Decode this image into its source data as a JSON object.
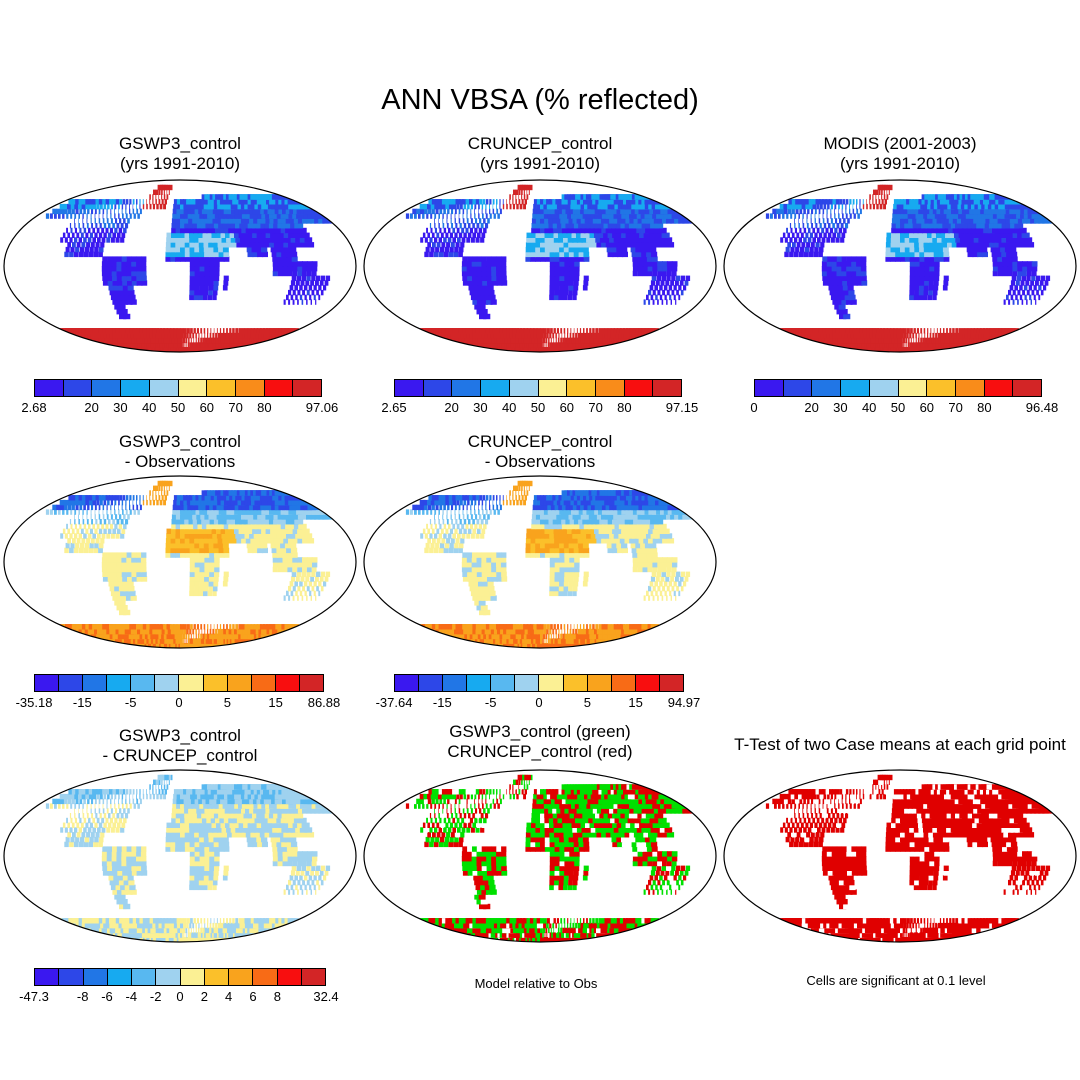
{
  "title": "ANN VBSA (% reflected)",
  "panels": [
    {
      "id": "p1",
      "title1": "GSWP3_control",
      "title2": "(yrs 1991-2010)",
      "scheme": "abs",
      "palette": "abs",
      "ticks": [
        "2.68",
        "20",
        "30",
        "40",
        "50",
        "60",
        "70",
        "80",
        "97.06"
      ]
    },
    {
      "id": "p2",
      "title1": "CRUNCEP_control",
      "title2": "(yrs 1991-2010)",
      "scheme": "abs",
      "palette": "abs",
      "ticks": [
        "2.65",
        "20",
        "30",
        "40",
        "50",
        "60",
        "70",
        "80",
        "97.15"
      ]
    },
    {
      "id": "p3",
      "title1": "MODIS (2001-2003)",
      "title2": "(yrs 1991-2010)",
      "scheme": "abs",
      "palette": "abs",
      "ticks": [
        "0",
        "20",
        "30",
        "40",
        "50",
        "60",
        "70",
        "80",
        "96.48"
      ]
    },
    {
      "id": "p4",
      "title1": "GSWP3_control",
      "title2": "- Observations",
      "scheme": "diff",
      "palette": "diff",
      "ticks": [
        "-35.18",
        "-15",
        "-5",
        "0",
        "5",
        "15",
        "86.88"
      ]
    },
    {
      "id": "p5",
      "title1": "CRUNCEP_control",
      "title2": "- Observations",
      "scheme": "diff",
      "palette": "diff",
      "ticks": [
        "-37.64",
        "-15",
        "-5",
        "0",
        "5",
        "15",
        "94.97"
      ]
    },
    {
      "id": "p6",
      "title1": "GSWP3_control",
      "title2": "- CRUNCEP_control",
      "scheme": "cdiff",
      "palette": "cdiff",
      "ticks": [
        "-47.3",
        "-8",
        "-6",
        "-4",
        "-2",
        "0",
        "2",
        "4",
        "6",
        "8",
        "32.4"
      ]
    },
    {
      "id": "p7",
      "title1": "GSWP3_control (green)",
      "title2": "CRUNCEP_control (red)",
      "scheme": "gr",
      "note": "Model relative to Obs"
    },
    {
      "id": "p8",
      "title1": "T-Test of two Case means at each grid point",
      "title2": "",
      "scheme": "red",
      "note": "Cells are significant at 0.1 level"
    }
  ],
  "palettes": {
    "abs": [
      "#3a18f0",
      "#2d47e8",
      "#2176e6",
      "#17aaf0",
      "#9fd2ef",
      "#fbf094",
      "#fbc02a",
      "#f98c1a",
      "#f80e0f",
      "#d32526"
    ],
    "diff": [
      "#3a18f0",
      "#2d47e8",
      "#2176e6",
      "#17aaf0",
      "#58b8f0",
      "#9fd2ef",
      "#fbf094",
      "#fbc02a",
      "#f9a31d",
      "#f86b16",
      "#f80e0f",
      "#d32526"
    ],
    "cdiff": [
      "#3a18f0",
      "#2d47e8",
      "#2176e6",
      "#17aaf0",
      "#58b8f0",
      "#9fd2ef",
      "#fbf094",
      "#fbc02a",
      "#f9a31d",
      "#f86b16",
      "#f80e0f",
      "#d32526"
    ]
  }
}
